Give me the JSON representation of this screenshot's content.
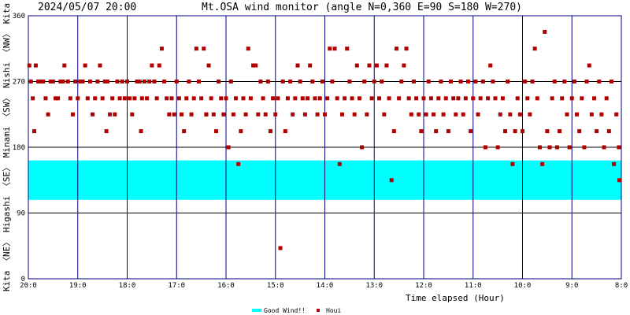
{
  "chart_data": {
    "type": "scatter",
    "timestamp": "2024/05/07 20:00",
    "title": "Mt.OSA wind monitor (angle N=0,360 E=90 S=180 W=270)",
    "xlabel": "Time elapsed (Hour)",
    "x_ticks": [
      "20:0",
      "19:0",
      "18:0",
      "17:0",
      "16:0",
      "15:0",
      "14:0",
      "13:0",
      "12:0",
      "11:0",
      "10:0",
      "9:0",
      "8:0"
    ],
    "y_ticks": [
      0,
      90,
      180,
      270,
      360
    ],
    "ylim": [
      0,
      360
    ],
    "xlim_hours_before": [
      0,
      12
    ],
    "side_label": "Kita 〈NE〉 Higashi 〈SE〉 Minami 〈SW〉 Nishi 〈NW〉 Kita",
    "good_wind_band": [
      108,
      162
    ],
    "legend": [
      {
        "label": "Good Wind!!",
        "color": "#00ffff"
      },
      {
        "label": "Houi",
        "color": "#b00000"
      }
    ],
    "grid": true,
    "scatter_points": [
      [
        0.02,
        292
      ],
      [
        0.05,
        270
      ],
      [
        0.09,
        247
      ],
      [
        0.12,
        202
      ],
      [
        0.15,
        292
      ],
      [
        0.2,
        270
      ],
      [
        0.25,
        270
      ],
      [
        0.3,
        270
      ],
      [
        0.35,
        247
      ],
      [
        0.4,
        225
      ],
      [
        0.45,
        270
      ],
      [
        0.5,
        270
      ],
      [
        0.55,
        247
      ],
      [
        0.6,
        247
      ],
      [
        0.65,
        270
      ],
      [
        0.7,
        270
      ],
      [
        0.73,
        292
      ],
      [
        0.8,
        270
      ],
      [
        0.85,
        247
      ],
      [
        0.9,
        225
      ],
      [
        0.95,
        270
      ],
      [
        1.0,
        247
      ],
      [
        1.05,
        270
      ],
      [
        1.1,
        270
      ],
      [
        1.15,
        292
      ],
      [
        1.2,
        247
      ],
      [
        1.25,
        270
      ],
      [
        1.3,
        225
      ],
      [
        1.35,
        247
      ],
      [
        1.4,
        270
      ],
      [
        1.45,
        292
      ],
      [
        1.5,
        247
      ],
      [
        1.55,
        270
      ],
      [
        1.58,
        202
      ],
      [
        1.6,
        270
      ],
      [
        1.65,
        225
      ],
      [
        1.7,
        247
      ],
      [
        1.75,
        225
      ],
      [
        1.8,
        270
      ],
      [
        1.85,
        247
      ],
      [
        1.9,
        270
      ],
      [
        1.95,
        247
      ],
      [
        2.0,
        270
      ],
      [
        2.05,
        247
      ],
      [
        2.1,
        225
      ],
      [
        2.15,
        247
      ],
      [
        2.2,
        270
      ],
      [
        2.25,
        270
      ],
      [
        2.28,
        202
      ],
      [
        2.3,
        247
      ],
      [
        2.35,
        270
      ],
      [
        2.4,
        247
      ],
      [
        2.45,
        270
      ],
      [
        2.5,
        292
      ],
      [
        2.55,
        270
      ],
      [
        2.6,
        247
      ],
      [
        2.65,
        292
      ],
      [
        2.7,
        315
      ],
      [
        2.75,
        270
      ],
      [
        2.8,
        247
      ],
      [
        2.85,
        225
      ],
      [
        2.9,
        247
      ],
      [
        2.95,
        225
      ],
      [
        3.0,
        270
      ],
      [
        3.05,
        247
      ],
      [
        3.1,
        225
      ],
      [
        3.15,
        202
      ],
      [
        3.2,
        247
      ],
      [
        3.25,
        270
      ],
      [
        3.3,
        225
      ],
      [
        3.35,
        247
      ],
      [
        3.4,
        315
      ],
      [
        3.45,
        270
      ],
      [
        3.5,
        247
      ],
      [
        3.55,
        315
      ],
      [
        3.6,
        225
      ],
      [
        3.65,
        292
      ],
      [
        3.7,
        247
      ],
      [
        3.75,
        225
      ],
      [
        3.8,
        202
      ],
      [
        3.85,
        270
      ],
      [
        3.9,
        247
      ],
      [
        3.95,
        225
      ],
      [
        3.6,
        225
      ],
      [
        4.0,
        247
      ],
      [
        4.05,
        180
      ],
      [
        4.1,
        270
      ],
      [
        4.15,
        225
      ],
      [
        4.2,
        247
      ],
      [
        4.25,
        157
      ],
      [
        4.3,
        202
      ],
      [
        4.35,
        247
      ],
      [
        4.4,
        225
      ],
      [
        4.45,
        315
      ],
      [
        4.5,
        247
      ],
      [
        4.55,
        292
      ],
      [
        4.6,
        292
      ],
      [
        4.65,
        225
      ],
      [
        4.7,
        270
      ],
      [
        4.75,
        247
      ],
      [
        4.8,
        225
      ],
      [
        4.85,
        270
      ],
      [
        4.9,
        202
      ],
      [
        4.95,
        247
      ],
      [
        5.0,
        225
      ],
      [
        5.05,
        247
      ],
      [
        5.1,
        42
      ],
      [
        5.15,
        270
      ],
      [
        5.2,
        202
      ],
      [
        5.25,
        247
      ],
      [
        5.3,
        270
      ],
      [
        5.35,
        225
      ],
      [
        5.4,
        247
      ],
      [
        5.45,
        292
      ],
      [
        5.5,
        270
      ],
      [
        5.55,
        247
      ],
      [
        5.6,
        225
      ],
      [
        5.65,
        247
      ],
      [
        5.7,
        292
      ],
      [
        5.75,
        270
      ],
      [
        5.8,
        247
      ],
      [
        5.85,
        225
      ],
      [
        5.9,
        247
      ],
      [
        5.95,
        270
      ],
      [
        6.0,
        225
      ],
      [
        6.05,
        247
      ],
      [
        6.1,
        315
      ],
      [
        6.15,
        270
      ],
      [
        6.2,
        315
      ],
      [
        6.25,
        247
      ],
      [
        6.3,
        157
      ],
      [
        6.35,
        225
      ],
      [
        6.4,
        247
      ],
      [
        6.45,
        315
      ],
      [
        6.5,
        270
      ],
      [
        6.55,
        247
      ],
      [
        6.6,
        225
      ],
      [
        6.65,
        292
      ],
      [
        6.7,
        247
      ],
      [
        6.75,
        180
      ],
      [
        6.8,
        270
      ],
      [
        6.85,
        225
      ],
      [
        6.9,
        292
      ],
      [
        6.95,
        247
      ],
      [
        7.0,
        270
      ],
      [
        7.05,
        292
      ],
      [
        7.1,
        247
      ],
      [
        7.15,
        270
      ],
      [
        7.2,
        225
      ],
      [
        7.25,
        292
      ],
      [
        7.3,
        247
      ],
      [
        7.35,
        135
      ],
      [
        7.4,
        202
      ],
      [
        7.45,
        315
      ],
      [
        7.5,
        247
      ],
      [
        7.55,
        270
      ],
      [
        7.6,
        292
      ],
      [
        7.65,
        315
      ],
      [
        7.7,
        247
      ],
      [
        7.75,
        225
      ],
      [
        7.8,
        270
      ],
      [
        7.85,
        247
      ],
      [
        7.9,
        225
      ],
      [
        7.95,
        202
      ],
      [
        8.0,
        247
      ],
      [
        8.05,
        225
      ],
      [
        8.1,
        270
      ],
      [
        8.15,
        247
      ],
      [
        8.2,
        225
      ],
      [
        8.25,
        202
      ],
      [
        8.3,
        247
      ],
      [
        8.35,
        270
      ],
      [
        8.4,
        225
      ],
      [
        8.45,
        247
      ],
      [
        8.5,
        202
      ],
      [
        8.55,
        270
      ],
      [
        8.6,
        247
      ],
      [
        8.65,
        225
      ],
      [
        8.7,
        247
      ],
      [
        8.75,
        270
      ],
      [
        8.8,
        225
      ],
      [
        8.85,
        247
      ],
      [
        8.9,
        270
      ],
      [
        8.95,
        202
      ],
      [
        9.0,
        247
      ],
      [
        9.05,
        270
      ],
      [
        9.1,
        225
      ],
      [
        9.15,
        247
      ],
      [
        9.2,
        270
      ],
      [
        9.25,
        180
      ],
      [
        9.3,
        247
      ],
      [
        9.35,
        292
      ],
      [
        9.4,
        270
      ],
      [
        9.45,
        247
      ],
      [
        9.5,
        180
      ],
      [
        9.55,
        225
      ],
      [
        9.6,
        247
      ],
      [
        9.65,
        202
      ],
      [
        9.7,
        270
      ],
      [
        9.75,
        225
      ],
      [
        9.8,
        157
      ],
      [
        9.85,
        202
      ],
      [
        9.9,
        247
      ],
      [
        9.95,
        225
      ],
      [
        10.0,
        202
      ],
      [
        10.05,
        270
      ],
      [
        10.1,
        247
      ],
      [
        10.15,
        225
      ],
      [
        10.2,
        270
      ],
      [
        10.25,
        315
      ],
      [
        10.3,
        247
      ],
      [
        10.35,
        180
      ],
      [
        10.4,
        157
      ],
      [
        10.45,
        338
      ],
      [
        10.5,
        202
      ],
      [
        10.55,
        180
      ],
      [
        10.6,
        247
      ],
      [
        10.65,
        270
      ],
      [
        10.7,
        180
      ],
      [
        10.75,
        202
      ],
      [
        10.8,
        247
      ],
      [
        10.85,
        270
      ],
      [
        10.9,
        225
      ],
      [
        10.95,
        180
      ],
      [
        11.0,
        247
      ],
      [
        11.05,
        270
      ],
      [
        11.1,
        225
      ],
      [
        11.15,
        202
      ],
      [
        11.2,
        247
      ],
      [
        11.25,
        180
      ],
      [
        11.3,
        270
      ],
      [
        11.35,
        292
      ],
      [
        11.4,
        225
      ],
      [
        11.45,
        247
      ],
      [
        11.5,
        202
      ],
      [
        11.55,
        270
      ],
      [
        11.6,
        225
      ],
      [
        11.65,
        180
      ],
      [
        11.7,
        247
      ],
      [
        11.75,
        202
      ],
      [
        11.8,
        270
      ],
      [
        11.85,
        157
      ],
      [
        11.9,
        225
      ],
      [
        11.95,
        180
      ],
      [
        11.98,
        135
      ]
    ]
  }
}
